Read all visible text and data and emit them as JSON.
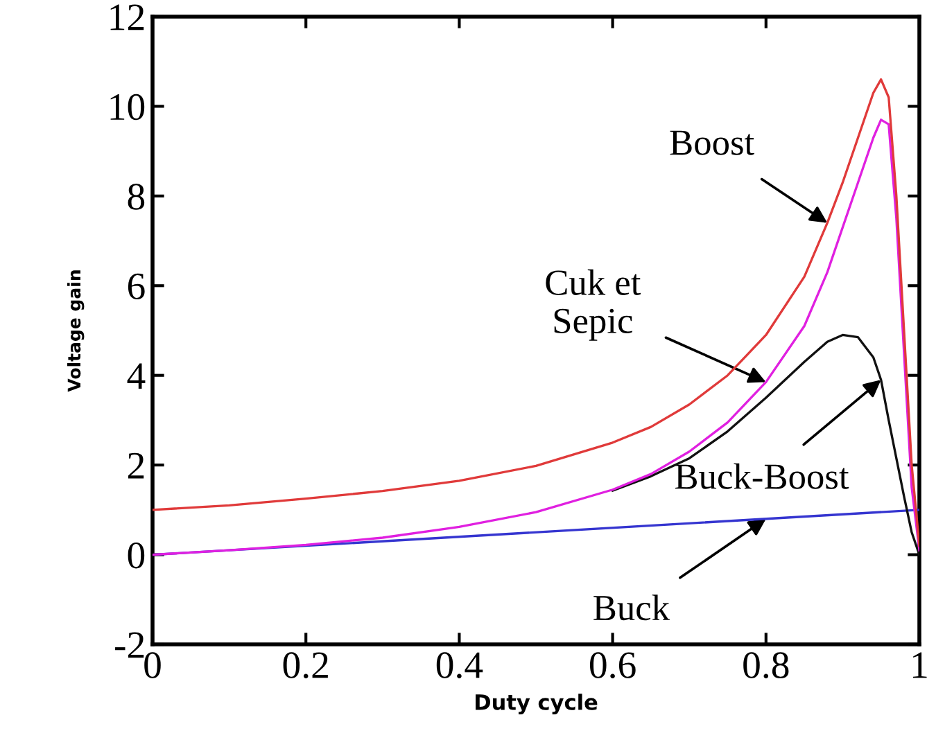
{
  "chart_data": {
    "type": "line",
    "xlabel": "Duty cycle",
    "ylabel": "Voltage gain",
    "xlim": [
      0,
      1
    ],
    "ylim": [
      -2,
      12
    ],
    "xticks": [
      0,
      0.2,
      0.4,
      0.6,
      0.8,
      1
    ],
    "yticks": [
      -2,
      0,
      2,
      4,
      6,
      8,
      10,
      12
    ],
    "grid": false,
    "legend": false,
    "marker": "none",
    "line_style": "solid",
    "series": [
      {
        "color": "#e03a3a",
        "x": [
          0,
          0.1,
          0.2,
          0.3,
          0.4,
          0.5,
          0.6,
          0.65,
          0.7,
          0.75,
          0.8,
          0.85,
          0.88,
          0.9,
          0.92,
          0.94,
          0.95,
          0.96,
          0.97,
          0.98,
          0.99,
          1.0
        ],
        "values": [
          1.0,
          1.1,
          1.25,
          1.42,
          1.65,
          1.98,
          2.5,
          2.85,
          3.35,
          4.0,
          4.9,
          6.2,
          7.4,
          8.3,
          9.3,
          10.3,
          10.6,
          10.2,
          8.0,
          5.0,
          2.0,
          0.2
        ]
      },
      {
        "color": "#e020e0",
        "x": [
          0,
          0.1,
          0.2,
          0.3,
          0.4,
          0.5,
          0.6,
          0.65,
          0.7,
          0.75,
          0.8,
          0.85,
          0.88,
          0.9,
          0.92,
          0.94,
          0.95,
          0.96,
          0.97,
          0.98,
          0.99,
          1.0
        ],
        "values": [
          0,
          0.1,
          0.22,
          0.38,
          0.62,
          0.95,
          1.45,
          1.8,
          2.3,
          2.95,
          3.85,
          5.1,
          6.3,
          7.3,
          8.3,
          9.3,
          9.7,
          9.6,
          7.5,
          4.5,
          1.5,
          0.1
        ]
      },
      {
        "color": "#111111",
        "x": [
          0.6,
          0.65,
          0.7,
          0.75,
          0.8,
          0.85,
          0.88,
          0.9,
          0.92,
          0.94,
          0.95,
          0.96,
          0.97,
          0.98,
          0.99,
          1.0
        ],
        "values": [
          1.43,
          1.75,
          2.15,
          2.75,
          3.5,
          4.3,
          4.75,
          4.9,
          4.85,
          4.4,
          3.9,
          3.0,
          2.15,
          1.3,
          0.5,
          0.0
        ]
      },
      {
        "color": "#3535d0",
        "x": [
          0,
          1
        ],
        "values": [
          0,
          1
        ]
      }
    ],
    "annotations": [
      {
        "text": "Boost",
        "x": 0.88,
        "y": 7.4
      },
      {
        "text": "Cuk et\nSepic",
        "x": 0.8,
        "y": 3.85
      },
      {
        "text": "Buck-Boost",
        "x": 0.95,
        "y": 3.9
      },
      {
        "text": "Buck",
        "x": 0.8,
        "y": 0.8
      }
    ]
  }
}
